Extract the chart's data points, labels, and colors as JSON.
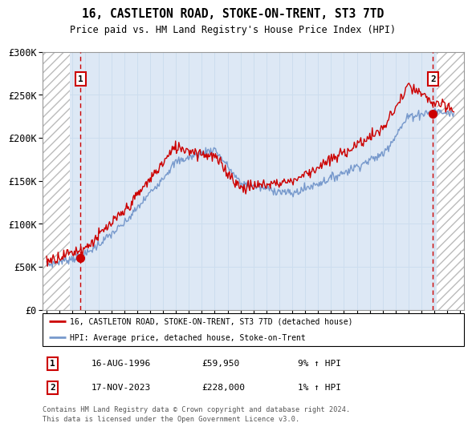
{
  "title": "16, CASTLETON ROAD, STOKE-ON-TRENT, ST3 7TD",
  "subtitle": "Price paid vs. HM Land Registry's House Price Index (HPI)",
  "ylim": [
    0,
    300000
  ],
  "xlim_start": 1993.7,
  "xlim_end": 2026.3,
  "hatch_left_end": 1995.8,
  "hatch_right_start": 2024.2,
  "sale1_x": 1996.62,
  "sale1_y": 59950,
  "sale1_label": "1",
  "sale1_date": "16-AUG-1996",
  "sale1_price": "£59,950",
  "sale1_hpi": "9% ↑ HPI",
  "sale2_x": 2023.88,
  "sale2_y": 228000,
  "sale2_label": "2",
  "sale2_date": "17-NOV-2023",
  "sale2_price": "£228,000",
  "sale2_hpi": "1% ↑ HPI",
  "red_line_color": "#cc0000",
  "blue_line_color": "#7799cc",
  "grid_color": "#ccddee",
  "bg_color": "#dde8f5",
  "legend_line1": "16, CASTLETON ROAD, STOKE-ON-TRENT, ST3 7TD (detached house)",
  "legend_line2": "HPI: Average price, detached house, Stoke-on-Trent",
  "footer": "Contains HM Land Registry data © Crown copyright and database right 2024.\nThis data is licensed under the Open Government Licence v3.0.",
  "yticks": [
    0,
    50000,
    100000,
    150000,
    200000,
    250000,
    300000
  ],
  "ytick_labels": [
    "£0",
    "£50K",
    "£100K",
    "£150K",
    "£200K",
    "£250K",
    "£300K"
  ],
  "xticks": [
    1994,
    1995,
    1996,
    1997,
    1998,
    1999,
    2000,
    2001,
    2002,
    2003,
    2004,
    2005,
    2006,
    2007,
    2008,
    2009,
    2010,
    2011,
    2012,
    2013,
    2014,
    2015,
    2016,
    2017,
    2018,
    2019,
    2020,
    2021,
    2022,
    2023,
    2024,
    2025,
    2026
  ]
}
